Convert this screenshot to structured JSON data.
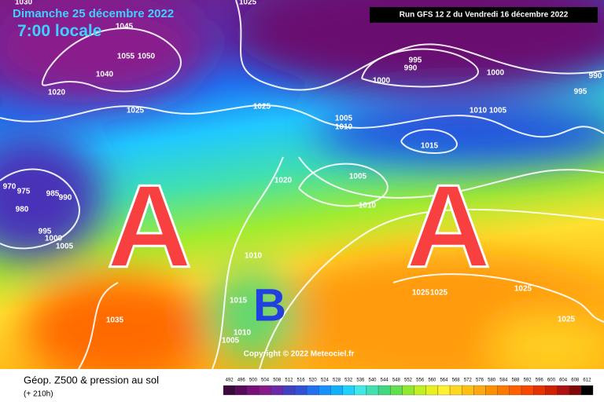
{
  "map": {
    "date": "Dimanche 25 décembre 2022",
    "time": "7:00 locale",
    "run": "Run GFS 12 Z du Vendredi 16 décembre 2022",
    "copyright": "Copyright © 2022 Meteociel.fr",
    "highs": [
      "A",
      "A"
    ],
    "lows": [
      "B"
    ],
    "pressure_labels": [
      1030,
      1025,
      1045,
      1055,
      1050,
      1040,
      1020,
      1025,
      1025,
      995,
      990,
      1000,
      1000,
      990,
      995,
      1010,
      1005,
      1005,
      1010,
      1015,
      1020,
      1005,
      1010,
      970,
      975,
      985,
      990,
      980,
      995,
      1000,
      1005,
      1010,
      1015,
      1010,
      1005,
      1035,
      1025,
      1025,
      1025,
      1025
    ]
  },
  "legend": {
    "title": "Géop. Z500 & pression au sol",
    "subtitle": "(+ 210h)",
    "values": [
      492,
      496,
      500,
      504,
      508,
      512,
      516,
      520,
      524,
      528,
      532,
      536,
      540,
      544,
      548,
      552,
      556,
      560,
      564,
      568,
      572,
      576,
      580,
      584,
      588,
      592,
      596,
      600,
      604,
      608,
      612
    ],
    "colors": [
      "#3c0a3c",
      "#5a0a5a",
      "#78107a",
      "#8a1a8c",
      "#6c2aa8",
      "#4040c0",
      "#3050d8",
      "#2070f0",
      "#1890ff",
      "#10b0ff",
      "#20d0ff",
      "#40e8e8",
      "#40e0b0",
      "#40d880",
      "#60e050",
      "#90e830",
      "#c0f020",
      "#e8f020",
      "#fff030",
      "#ffd820",
      "#ffc010",
      "#ffa810",
      "#ff9000",
      "#ff7800",
      "#ff6000",
      "#f84800",
      "#e83000",
      "#d02000",
      "#b01010",
      "#800808",
      "#000000"
    ]
  }
}
